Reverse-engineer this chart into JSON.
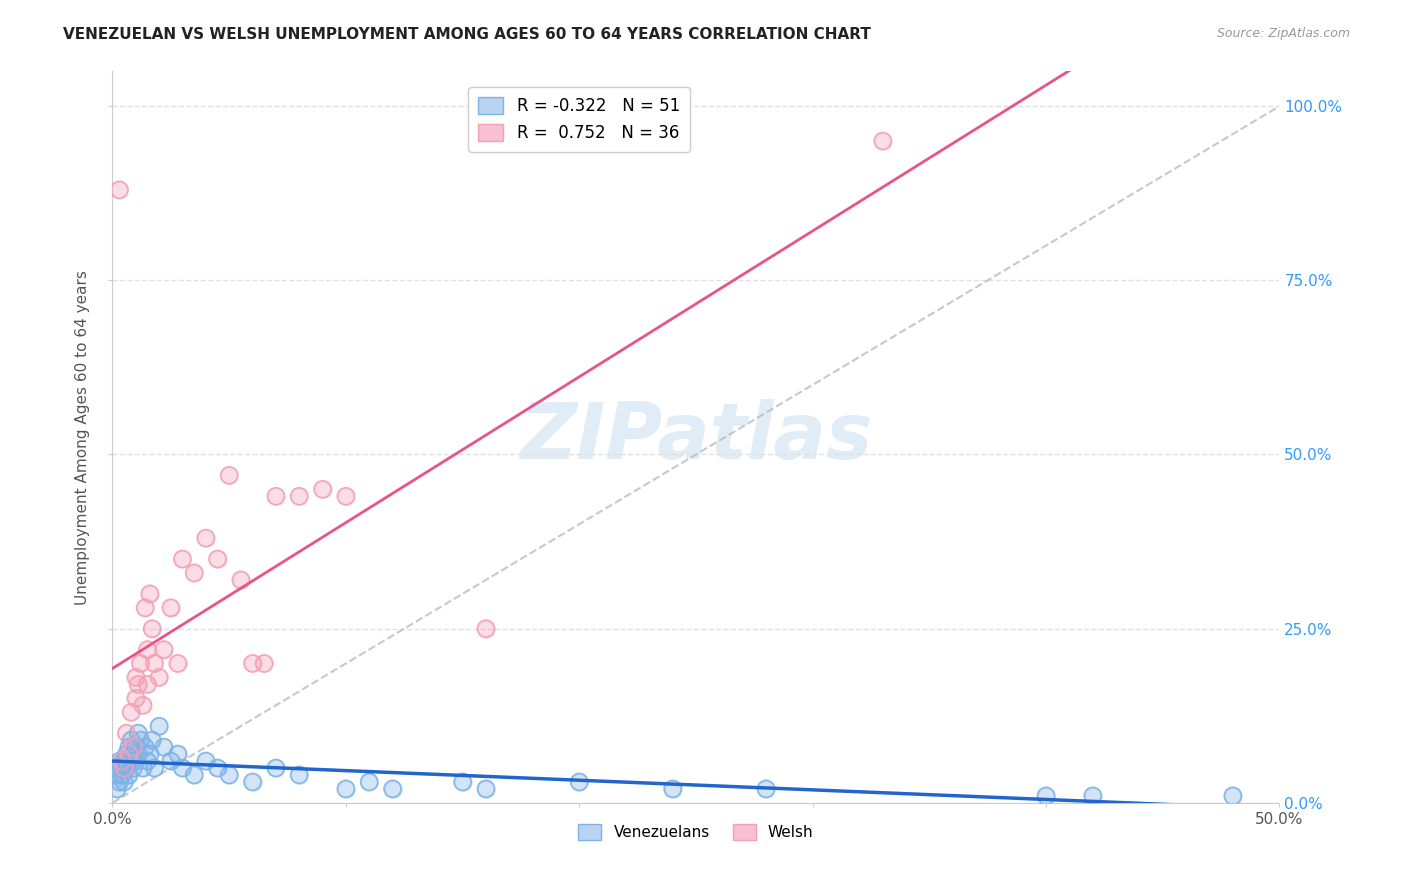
{
  "title": "VENEZUELAN VS WELSH UNEMPLOYMENT AMONG AGES 60 TO 64 YEARS CORRELATION CHART",
  "source": "Source: ZipAtlas.com",
  "ylabel": "Unemployment Among Ages 60 to 64 years",
  "xlim": [
    0.0,
    0.5
  ],
  "ylim": [
    0.0,
    1.05
  ],
  "background_color": "#ffffff",
  "grid_color": "#e0e0e0",
  "venezuelan_color": "#7EB3E8",
  "venezuelan_line_color": "#2266CC",
  "welsh_color": "#F4A0B5",
  "welsh_line_color": "#E8538A",
  "diagonal_color": "#bbbbbb",
  "venezuelan_R": -0.322,
  "venezuelan_N": 51,
  "welsh_R": 0.752,
  "welsh_N": 36,
  "watermark": "ZIPatlas",
  "venezuelan_scatter": [
    [
      0.001,
      0.04
    ],
    [
      0.002,
      0.02
    ],
    [
      0.002,
      0.05
    ],
    [
      0.003,
      0.03
    ],
    [
      0.003,
      0.06
    ],
    [
      0.004,
      0.04
    ],
    [
      0.004,
      0.05
    ],
    [
      0.005,
      0.06
    ],
    [
      0.005,
      0.03
    ],
    [
      0.006,
      0.07
    ],
    [
      0.006,
      0.05
    ],
    [
      0.007,
      0.04
    ],
    [
      0.007,
      0.08
    ],
    [
      0.008,
      0.06
    ],
    [
      0.008,
      0.09
    ],
    [
      0.009,
      0.07
    ],
    [
      0.009,
      0.05
    ],
    [
      0.01,
      0.08
    ],
    [
      0.01,
      0.06
    ],
    [
      0.011,
      0.1
    ],
    [
      0.011,
      0.07
    ],
    [
      0.012,
      0.09
    ],
    [
      0.013,
      0.05
    ],
    [
      0.014,
      0.08
    ],
    [
      0.015,
      0.06
    ],
    [
      0.016,
      0.07
    ],
    [
      0.017,
      0.09
    ],
    [
      0.018,
      0.05
    ],
    [
      0.02,
      0.11
    ],
    [
      0.022,
      0.08
    ],
    [
      0.025,
      0.06
    ],
    [
      0.028,
      0.07
    ],
    [
      0.03,
      0.05
    ],
    [
      0.035,
      0.04
    ],
    [
      0.04,
      0.06
    ],
    [
      0.045,
      0.05
    ],
    [
      0.05,
      0.04
    ],
    [
      0.06,
      0.03
    ],
    [
      0.07,
      0.05
    ],
    [
      0.08,
      0.04
    ],
    [
      0.1,
      0.02
    ],
    [
      0.11,
      0.03
    ],
    [
      0.12,
      0.02
    ],
    [
      0.15,
      0.03
    ],
    [
      0.16,
      0.02
    ],
    [
      0.2,
      0.03
    ],
    [
      0.24,
      0.02
    ],
    [
      0.28,
      0.02
    ],
    [
      0.4,
      0.01
    ],
    [
      0.42,
      0.01
    ],
    [
      0.48,
      0.01
    ]
  ],
  "welsh_scatter": [
    [
      0.003,
      0.88
    ],
    [
      0.004,
      0.06
    ],
    [
      0.005,
      0.05
    ],
    [
      0.006,
      0.1
    ],
    [
      0.007,
      0.07
    ],
    [
      0.008,
      0.13
    ],
    [
      0.009,
      0.08
    ],
    [
      0.01,
      0.15
    ],
    [
      0.01,
      0.18
    ],
    [
      0.011,
      0.17
    ],
    [
      0.012,
      0.2
    ],
    [
      0.013,
      0.14
    ],
    [
      0.014,
      0.28
    ],
    [
      0.015,
      0.22
    ],
    [
      0.015,
      0.17
    ],
    [
      0.016,
      0.3
    ],
    [
      0.017,
      0.25
    ],
    [
      0.018,
      0.2
    ],
    [
      0.02,
      0.18
    ],
    [
      0.022,
      0.22
    ],
    [
      0.025,
      0.28
    ],
    [
      0.028,
      0.2
    ],
    [
      0.03,
      0.35
    ],
    [
      0.035,
      0.33
    ],
    [
      0.04,
      0.38
    ],
    [
      0.045,
      0.35
    ],
    [
      0.05,
      0.47
    ],
    [
      0.055,
      0.32
    ],
    [
      0.06,
      0.2
    ],
    [
      0.065,
      0.2
    ],
    [
      0.07,
      0.44
    ],
    [
      0.08,
      0.44
    ],
    [
      0.09,
      0.45
    ],
    [
      0.1,
      0.44
    ],
    [
      0.16,
      0.25
    ],
    [
      0.33,
      0.95
    ]
  ]
}
